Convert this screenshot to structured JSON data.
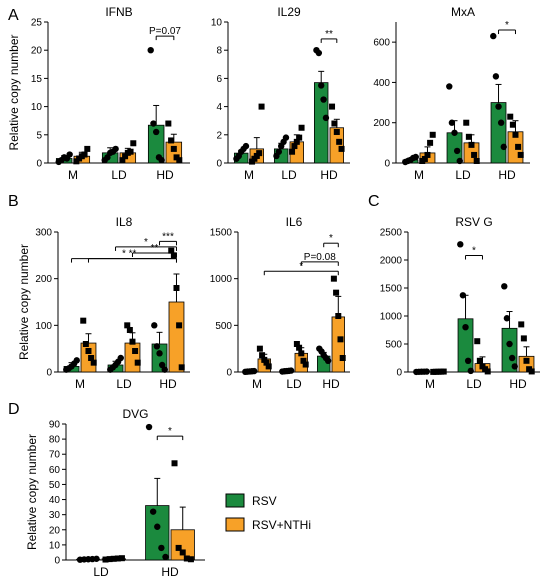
{
  "colors": {
    "rsv": "#1b8a3e",
    "rsv_nthi": "#f7a128",
    "axis": "#000000",
    "point": "#000000"
  },
  "legend": {
    "entries": [
      {
        "label": "RSV",
        "color": "#1b8a3e"
      },
      {
        "label": "RSV+NTHi",
        "color": "#f7a128"
      }
    ]
  },
  "chart_data": [
    {
      "panel": "A",
      "title": "IFNB",
      "type": "bar",
      "ylabel": "Relative copy number",
      "categories": [
        "M",
        "LD",
        "HD"
      ],
      "ylim": [
        0,
        25
      ],
      "yticks": [
        0,
        5,
        10,
        15,
        20,
        25
      ],
      "series": [
        {
          "name": "RSV",
          "values": [
            0.8,
            1.8,
            6.7
          ],
          "errors": [
            0.5,
            0.9,
            3.5
          ],
          "points": [
            [
              0.2,
              0.5,
              1.0,
              0.8,
              1.5
            ],
            [
              0.5,
              1.0,
              1.8,
              2.0,
              2.5
            ],
            [
              20.0,
              7.0,
              5.5,
              1.0,
              0.5
            ]
          ]
        },
        {
          "name": "RSV+NTHi",
          "values": [
            1.2,
            1.8,
            3.7
          ],
          "errors": [
            0.7,
            0.8,
            1.4
          ],
          "points": [
            [
              0.3,
              0.8,
              1.2,
              1.5,
              2.5
            ],
            [
              0.5,
              1.2,
              1.8,
              2.0,
              3.5
            ],
            [
              7.0,
              4.0,
              2.5,
              1.0,
              0.5
            ]
          ]
        }
      ],
      "comparisons": [
        {
          "from": [
            2,
            0
          ],
          "to": [
            2,
            1
          ],
          "label": "P=0.07",
          "y": 22.5
        }
      ]
    },
    {
      "panel": "",
      "title": "IL29",
      "type": "bar",
      "ylabel": "",
      "categories": [
        "M",
        "LD",
        "HD"
      ],
      "ylim": [
        0,
        10
      ],
      "yticks": [
        0,
        2,
        4,
        6,
        8,
        10
      ],
      "series": [
        {
          "name": "RSV",
          "values": [
            0.7,
            1.0,
            5.7
          ],
          "errors": [
            0.2,
            0.4,
            0.8
          ],
          "points": [
            [
              0.3,
              0.5,
              0.8,
              1.0,
              1.2
            ],
            [
              0.5,
              0.8,
              1.2,
              1.5,
              1.8
            ],
            [
              8.0,
              7.8,
              5.5,
              4.5,
              3.2
            ]
          ]
        },
        {
          "name": "RSV+NTHi",
          "values": [
            1.0,
            1.5,
            2.5
          ],
          "errors": [
            0.8,
            0.5,
            0.6
          ],
          "points": [
            [
              0.1,
              0.3,
              0.5,
              0.7,
              4.0
            ],
            [
              0.8,
              1.2,
              1.5,
              1.8,
              2.5
            ],
            [
              4.0,
              2.8,
              2.2,
              1.5,
              1.0
            ]
          ]
        }
      ],
      "comparisons": [
        {
          "from": [
            2,
            0
          ],
          "to": [
            2,
            1
          ],
          "label": "**",
          "y": 8.8
        }
      ]
    },
    {
      "panel": "",
      "title": "MxA",
      "type": "bar",
      "ylabel": "",
      "categories": [
        "M",
        "LD",
        "HD"
      ],
      "ylim": [
        0,
        700
      ],
      "yticks": [
        0,
        200,
        400,
        600
      ],
      "series": [
        {
          "name": "RSV",
          "values": [
            15,
            150,
            300
          ],
          "errors": [
            10,
            60,
            90
          ],
          "points": [
            [
              5,
              10,
              15,
              25,
              30
            ],
            [
              380,
              200,
              150,
              60,
              10
            ],
            [
              630,
              430,
              280,
              200,
              80
            ]
          ]
        },
        {
          "name": "RSV+NTHi",
          "values": [
            50,
            100,
            155
          ],
          "errors": [
            30,
            40,
            55
          ],
          "points": [
            [
              10,
              20,
              40,
              100,
              140
            ],
            [
              200,
              130,
              90,
              40,
              10
            ],
            [
              230,
              190,
              140,
              80,
              40
            ]
          ]
        }
      ],
      "comparisons": [
        {
          "from": [
            2,
            0
          ],
          "to": [
            2,
            1
          ],
          "label": "*",
          "y": 660
        }
      ]
    },
    {
      "panel": "B",
      "title": "IL8",
      "type": "bar",
      "ylabel": "Relative copy number",
      "categories": [
        "M",
        "LD",
        "HD"
      ],
      "ylim": [
        0,
        300
      ],
      "yticks": [
        0,
        100,
        200,
        300
      ],
      "series": [
        {
          "name": "RSV",
          "values": [
            12,
            15,
            60
          ],
          "errors": [
            8,
            8,
            25
          ],
          "points": [
            [
              5,
              8,
              12,
              18,
              25
            ],
            [
              5,
              10,
              15,
              22,
              30
            ],
            [
              100,
              55,
              40,
              15,
              5
            ]
          ]
        },
        {
          "name": "RSV+NTHi",
          "values": [
            62,
            62,
            150
          ],
          "errors": [
            20,
            22,
            60
          ],
          "points": [
            [
              110,
              60,
              45,
              30,
              20
            ],
            [
              100,
              90,
              65,
              45,
              20
            ],
            [
              260,
              250,
              180,
              100,
              10
            ]
          ]
        }
      ],
      "comparisons": [
        {
          "from": [
            2,
            0
          ],
          "to": [
            2,
            1
          ],
          "label": "***",
          "y": 280
        },
        {
          "from": [
            1,
            0
          ],
          "to": [
            2,
            1
          ],
          "label": "*",
          "y": 268
        },
        {
          "from": [
            1,
            1
          ],
          "to": [
            2,
            1
          ],
          "label": "**",
          "y": 255
        },
        {
          "from": [
            0,
            0
          ],
          "to": [
            2,
            1
          ],
          "label": "*",
          "y": 243
        },
        {
          "from": [
            0,
            1
          ],
          "to": [
            2,
            1
          ],
          "label": "**",
          "y": 243
        }
      ]
    },
    {
      "panel": "",
      "title": "IL6",
      "type": "bar",
      "ylabel": "",
      "categories": [
        "M",
        "LD",
        "HD"
      ],
      "ylim": [
        0,
        1500
      ],
      "yticks": [
        0,
        500,
        1000,
        1500
      ],
      "series": [
        {
          "name": "RSV",
          "values": [
            5,
            10,
            170
          ],
          "errors": [
            3,
            5,
            40
          ],
          "points": [
            [
              2,
              4,
              6,
              8,
              10
            ],
            [
              5,
              8,
              10,
              12,
              15
            ],
            [
              250,
              220,
              180,
              150,
              120
            ]
          ]
        },
        {
          "name": "RSV+NTHi",
          "values": [
            140,
            200,
            590
          ],
          "errors": [
            50,
            60,
            220
          ],
          "points": [
            [
              250,
              180,
              130,
              100,
              60
            ],
            [
              300,
              260,
              200,
              120,
              80
            ],
            [
              1000,
              850,
              600,
              350,
              150
            ]
          ]
        }
      ],
      "comparisons": [
        {
          "from": [
            2,
            0
          ],
          "to": [
            2,
            1
          ],
          "label": "*",
          "y": 1380
        },
        {
          "from": [
            1,
            1
          ],
          "to": [
            2,
            1
          ],
          "label": "P=0.08",
          "y": 1180
        },
        {
          "from": [
            0,
            1
          ],
          "to": [
            2,
            1
          ],
          "label": "*",
          "y": 1080
        }
      ]
    },
    {
      "panel": "C",
      "title": "RSV G",
      "type": "bar",
      "ylabel": "",
      "categories": [
        "M",
        "LD",
        "HD"
      ],
      "ylim": [
        0,
        2500
      ],
      "yticks": [
        0,
        500,
        1000,
        1500,
        2000,
        2500
      ],
      "series": [
        {
          "name": "RSV",
          "values": [
            5,
            950,
            780
          ],
          "errors": [
            3,
            420,
            300
          ],
          "points": [
            [
              2,
              4,
              5,
              6,
              8
            ],
            [
              2280,
              1370,
              800,
              200,
              20
            ],
            [
              1530,
              960,
              500,
              250,
              100
            ]
          ]
        },
        {
          "name": "RSV+NTHi",
          "values": [
            5,
            150,
            280
          ],
          "errors": [
            3,
            120,
            170
          ],
          "points": [
            [
              2,
              4,
              5,
              6,
              8
            ],
            [
              550,
              200,
              100,
              50,
              10
            ],
            [
              850,
              600,
              200,
              50,
              10
            ]
          ]
        }
      ],
      "comparisons": [
        {
          "from": [
            1,
            0
          ],
          "to": [
            1,
            1
          ],
          "label": "*",
          "y": 2080
        }
      ]
    },
    {
      "panel": "D",
      "title": "DVG",
      "type": "bar",
      "ylabel": "Relative copy number",
      "categories": [
        "LD",
        "HD"
      ],
      "ylim": [
        0,
        90
      ],
      "yticks": [
        0,
        10,
        20,
        30,
        40,
        50,
        60,
        70,
        80,
        90
      ],
      "series": [
        {
          "name": "RSV",
          "values": [
            0.5,
            36
          ],
          "errors": [
            0.3,
            18
          ],
          "points": [
            [
              0.2,
              0.4,
              0.5,
              0.6,
              0.8
            ],
            [
              88,
              32,
              22,
              8,
              2
            ]
          ]
        },
        {
          "name": "RSV+NTHi",
          "values": [
            0.8,
            20
          ],
          "errors": [
            0.4,
            15
          ],
          "points": [
            [
              0.3,
              0.6,
              0.8,
              1.0,
              1.2
            ],
            [
              64,
              8,
              5,
              1,
              0.5
            ]
          ]
        }
      ],
      "comparisons": [
        {
          "from": [
            1,
            0
          ],
          "to": [
            1,
            1
          ],
          "label": "*",
          "y": 82
        }
      ]
    }
  ]
}
